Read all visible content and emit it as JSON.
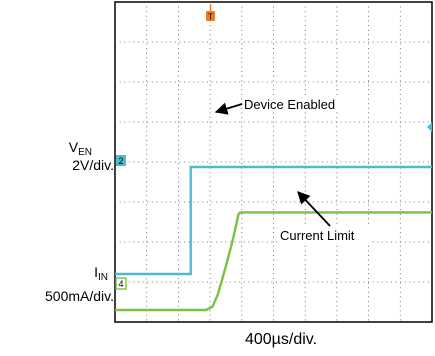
{
  "chart_data": {
    "type": "line",
    "title": "",
    "xlabel": "400µs/div.",
    "grid": true,
    "x_range": [
      0,
      4000
    ],
    "channels": [
      {
        "name": "EN",
        "label_main": "V",
        "label_sub": "EN",
        "scale": "2V/div.",
        "marker": "2",
        "color": "#4fb9d1",
        "y_range": [
          -2.4,
          13.6
        ],
        "points": [
          [
            0,
            0
          ],
          [
            955,
            0
          ],
          [
            955,
            5.35
          ],
          [
            4000,
            5.35
          ]
        ]
      },
      {
        "name": "IN",
        "label_main": "I",
        "label_sub": "IN",
        "scale": "500mA/div.",
        "marker": "4",
        "color": "#7ac143",
        "y_range": [
          -0.15,
          3.85
        ],
        "points": [
          [
            0,
            0
          ],
          [
            1150,
            0
          ],
          [
            1230,
            0.04
          ],
          [
            1300,
            0.2
          ],
          [
            1400,
            0.55
          ],
          [
            1480,
            0.85
          ],
          [
            1560,
            1.2
          ],
          [
            1580,
            1.22
          ],
          [
            4000,
            1.22
          ]
        ]
      }
    ],
    "trigger_marker": "T",
    "annotations": [
      {
        "text": "Device Enabled",
        "target": [
          960,
          6.1
        ]
      },
      {
        "text": "Current Limit",
        "target": [
          1800,
          1.18
        ]
      }
    ]
  }
}
